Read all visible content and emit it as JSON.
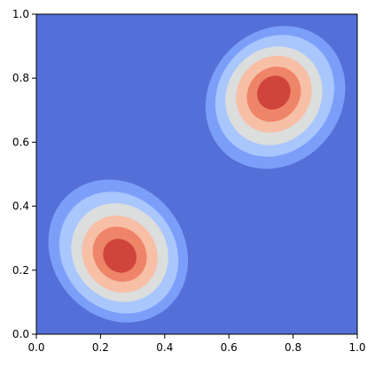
{
  "chart_data": {
    "type": "contour",
    "title": "",
    "xlabel": "",
    "ylabel": "",
    "xlim": [
      0.0,
      1.0
    ],
    "ylim": [
      0.0,
      1.0
    ],
    "x_ticks": [
      "0.0",
      "0.2",
      "0.4",
      "0.6",
      "0.8",
      "1.0"
    ],
    "y_ticks": [
      "0.0",
      "0.2",
      "0.4",
      "0.6",
      "0.8",
      "1.0"
    ],
    "grid": false,
    "legend": "none",
    "colormap": "coolwarm",
    "background_color": "#5470d8",
    "levels": [
      {
        "rank": 1,
        "color": "#7b9ff9"
      },
      {
        "rank": 2,
        "color": "#a9c6fd"
      },
      {
        "rank": 3,
        "color": "#dcdddd"
      },
      {
        "rank": 4,
        "color": "#f6bfa6"
      },
      {
        "rank": 5,
        "color": "#ee8468"
      },
      {
        "rank": 6,
        "color": "#cf453c"
      }
    ],
    "peaks": [
      {
        "name": "lower-left",
        "x": 0.25,
        "y": 0.25
      },
      {
        "name": "upper-right",
        "x": 0.75,
        "y": 0.75
      }
    ]
  }
}
